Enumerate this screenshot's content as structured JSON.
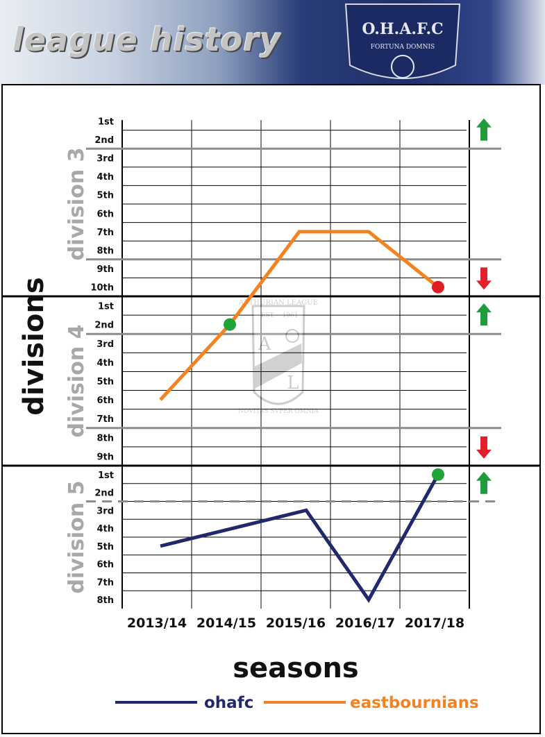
{
  "header": {
    "title": "league history",
    "crest_text": "O.H.A.F.C",
    "crest_motto": "FORTUNA DOMNIS"
  },
  "watermark": {
    "text": "ARTHURIAN LEAGUE",
    "est": "EST.",
    "year": "1961",
    "letter1": "A",
    "letter2": "L",
    "motto": "NOVITAS SVPER OMNIA"
  },
  "colors": {
    "ohafc": "#21286b",
    "eastbournians": "#f58220",
    "promote": "#1f9d3c",
    "relegate": "#e0202a",
    "promoted_marker": "#1fa43a",
    "relegated_marker": "#e01e24"
  },
  "chart_data": {
    "type": "line",
    "xlabel": "seasons",
    "ylabel": "divisions",
    "categories": [
      "2013/14",
      "2014/15",
      "2015/16",
      "2016/17",
      "2017/18"
    ],
    "divisions": [
      {
        "name": "division 3",
        "ranks": [
          "1st",
          "2nd",
          "3rd",
          "4th",
          "5th",
          "6th",
          "7th",
          "8th",
          "9th",
          "10th"
        ],
        "promote_after": 2,
        "relegate_from": 9
      },
      {
        "name": "division 4",
        "ranks": [
          "1st",
          "2nd",
          "3rd",
          "4th",
          "5th",
          "6th",
          "7th",
          "8th",
          "9th"
        ],
        "promote_after": 2,
        "relegate_from": 8
      },
      {
        "name": "division 5",
        "ranks": [
          "1st",
          "2nd",
          "3rd",
          "4th",
          "5th",
          "6th",
          "7th",
          "8th"
        ],
        "promote_after": 2
      }
    ],
    "series": [
      {
        "name": "ohafc",
        "color": "#21286b",
        "points": [
          {
            "season": "2013/14",
            "division": 5,
            "position": 5
          },
          {
            "season": "2015/16",
            "division": 5,
            "position": 3
          },
          {
            "season": "2016/17",
            "division": 5,
            "position": 8
          },
          {
            "season": "2017/18",
            "division": 5,
            "position": 1,
            "marker": "promoted"
          }
        ]
      },
      {
        "name": "eastbournians",
        "color": "#f58220",
        "points": [
          {
            "season": "2013/14",
            "division": 4,
            "position": 6
          },
          {
            "season": "2014/15",
            "division": 4,
            "position": 2,
            "marker": "promoted"
          },
          {
            "season": "2015/16",
            "division": 3,
            "position": 7
          },
          {
            "season": "2016/17",
            "division": 3,
            "position": 7
          },
          {
            "season": "2017/18",
            "division": 3,
            "position": 10,
            "marker": "relegated"
          }
        ]
      }
    ]
  }
}
